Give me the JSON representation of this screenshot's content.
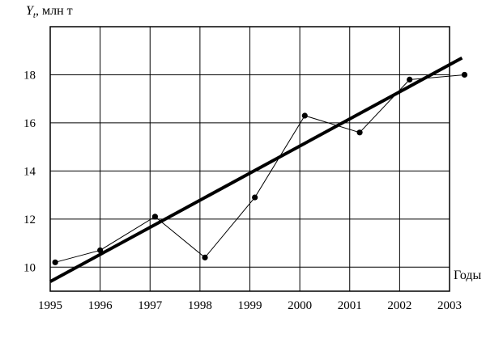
{
  "chart_data": {
    "type": "line",
    "title": "",
    "ylabel_symbol": "Y",
    "ylabel_subscript": "t",
    "ylabel_rest": ", млн т",
    "xlabel": "Годы",
    "x_ticks": [
      "1995",
      "1996",
      "1997",
      "1998",
      "1999",
      "2000",
      "2001",
      "2002",
      "2003"
    ],
    "y_ticks": [
      "10",
      "12",
      "14",
      "16",
      "18"
    ],
    "xlim": [
      1995,
      2003
    ],
    "ylim": [
      9,
      20
    ],
    "grid": true,
    "series": [
      {
        "style": "thin line with dot markers",
        "x": [
          1995.1,
          1996.0,
          1997.1,
          1998.1,
          1999.1,
          2000.1,
          2001.2,
          2002.2,
          2003.3
        ],
        "y": [
          10.2,
          10.7,
          12.1,
          10.4,
          12.9,
          16.3,
          15.6,
          17.8,
          18.0
        ]
      },
      {
        "style": "thick trend line",
        "x": [
          1995,
          2003.25
        ],
        "y": [
          9.4,
          18.7
        ]
      }
    ]
  }
}
